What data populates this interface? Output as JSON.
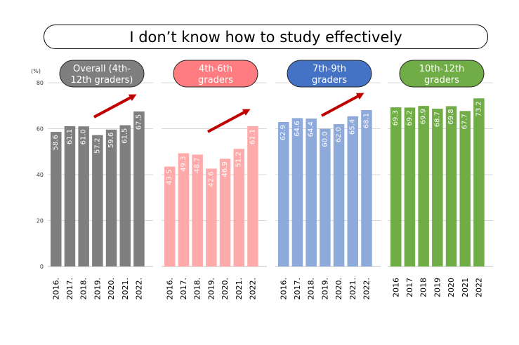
{
  "title": "I don’t know how to study effectively",
  "chart_data": {
    "type": "bar",
    "title": "I don’t know how to study effectively",
    "unit_label": "(%)",
    "ylim": [
      0,
      80
    ],
    "yticks": [
      0,
      20,
      40,
      60,
      80
    ],
    "grid": true,
    "panels": [
      {
        "label": "Overall (4th-12th graders)",
        "color": "#7f7f7f",
        "label_bg": "#7f7f7f",
        "label_color": "#ffffff",
        "categories": [
          "2016.",
          "2017.",
          "2018.",
          "2019.",
          "2020.",
          "2021.",
          "2022."
        ],
        "values": [
          58.6,
          61.1,
          61.0,
          57.2,
          59.6,
          61.5,
          67.5
        ],
        "trend_arrow": true
      },
      {
        "label": "4th-6th graders",
        "color": "#ffaaaa",
        "label_bg": "#ff7c80",
        "label_color": "#ffffff",
        "categories": [
          "2016.",
          "2017.",
          "2018.",
          "2019.",
          "2020.",
          "2021.",
          "2022."
        ],
        "values": [
          43.5,
          49.3,
          48.7,
          42.6,
          46.9,
          51.2,
          61.1
        ],
        "trend_arrow": true
      },
      {
        "label": "7th-9th graders",
        "color": "#8eaadb",
        "label_bg": "#4472c4",
        "label_color": "#ffffff",
        "categories": [
          "2016.",
          "2017.",
          "2018.",
          "2019.",
          "2020.",
          "2021.",
          "2022."
        ],
        "values": [
          62.9,
          64.6,
          64.4,
          60.0,
          62.0,
          65.4,
          68.1
        ],
        "trend_arrow": true
      },
      {
        "label": "10th-12th graders",
        "color": "#70ad47",
        "label_bg": "#70ad47",
        "label_color": "#ffffff",
        "categories": [
          "2016",
          "2017",
          "2018",
          "2019",
          "2020",
          "2021",
          "2022"
        ],
        "values": [
          69.3,
          69.2,
          69.9,
          68.7,
          69.8,
          67.7,
          73.2
        ],
        "trend_arrow": false
      }
    ],
    "arrow_color": "#c00000"
  }
}
